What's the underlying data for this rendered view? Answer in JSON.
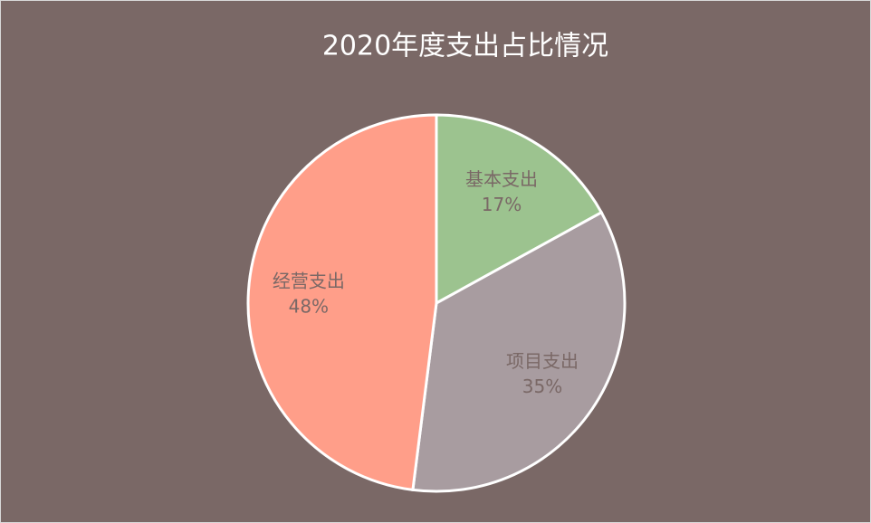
{
  "chart_data": {
    "type": "pie",
    "title": "2020年度支出占比情况",
    "categories": [
      "基本支出",
      "项目支出",
      "经营支出"
    ],
    "values": [
      17,
      35,
      48
    ],
    "value_labels": [
      "17%",
      "35%",
      "48%"
    ],
    "colors": [
      "#9cc38f",
      "#a89ca0",
      "#ff9e89"
    ]
  }
}
